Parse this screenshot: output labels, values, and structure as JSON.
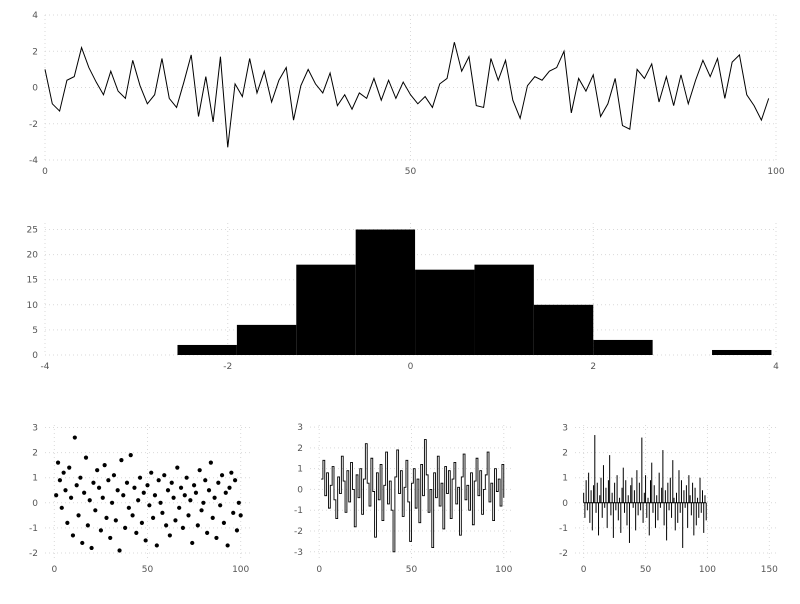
{
  "figure": {
    "background": "#ffffff",
    "grid_color": "#d9d9d9",
    "tick_label_color": "#555555",
    "series_color": "#000000"
  },
  "chart_data": [
    {
      "id": "noise-line",
      "type": "line",
      "title": "",
      "xlabel": "",
      "ylabel": "",
      "xlim": [
        0,
        100
      ],
      "ylim": [
        -4,
        4
      ],
      "xticks": [
        0,
        50,
        100
      ],
      "yticks": [
        -4,
        -2,
        0,
        2,
        4
      ],
      "grid": true,
      "x": [
        0,
        1,
        2,
        3,
        4,
        5,
        6,
        7,
        8,
        9,
        10,
        11,
        12,
        13,
        14,
        15,
        16,
        17,
        18,
        19,
        20,
        21,
        22,
        23,
        24,
        25,
        26,
        27,
        28,
        29,
        30,
        31,
        32,
        33,
        34,
        35,
        36,
        37,
        38,
        39,
        40,
        41,
        42,
        43,
        44,
        45,
        46,
        47,
        48,
        49,
        50,
        51,
        52,
        53,
        54,
        55,
        56,
        57,
        58,
        59,
        60,
        61,
        62,
        63,
        64,
        65,
        66,
        67,
        68,
        69,
        70,
        71,
        72,
        73,
        74,
        75,
        76,
        77,
        78,
        79,
        80,
        81,
        82,
        83,
        84,
        85,
        86,
        87,
        88,
        89,
        90,
        91,
        92,
        93,
        94,
        95,
        96,
        97,
        98,
        99
      ],
      "y": [
        1.0,
        -0.9,
        -1.3,
        0.4,
        0.6,
        2.2,
        1.1,
        0.3,
        -0.4,
        0.9,
        -0.2,
        -0.6,
        1.5,
        0.1,
        -0.9,
        -0.4,
        1.6,
        -0.6,
        -1.1,
        0.3,
        1.8,
        -1.6,
        0.6,
        -1.9,
        1.7,
        -3.3,
        0.2,
        -0.5,
        1.6,
        -0.3,
        0.9,
        -0.8,
        0.4,
        1.1,
        -1.8,
        0.1,
        1.0,
        0.2,
        -0.3,
        0.8,
        -1.0,
        -0.4,
        -1.2,
        -0.3,
        -0.6,
        0.5,
        -0.7,
        0.4,
        -0.6,
        0.3,
        -0.4,
        -0.9,
        -0.5,
        -1.1,
        0.2,
        0.5,
        2.5,
        0.9,
        1.7,
        -1.0,
        -1.1,
        1.6,
        0.4,
        1.5,
        -0.7,
        -1.7,
        0.1,
        0.6,
        0.4,
        0.9,
        1.1,
        2.0,
        -1.4,
        0.5,
        -0.2,
        0.7,
        -1.6,
        -0.9,
        0.5,
        -2.1,
        -2.3,
        1.0,
        0.5,
        1.3,
        -0.8,
        0.6,
        -1.0,
        0.7,
        -0.9,
        0.4,
        1.5,
        0.6,
        1.6,
        -0.6,
        1.4,
        1.8,
        -0.4,
        -1.0,
        -1.8,
        -0.6
      ]
    },
    {
      "id": "histogram",
      "type": "bar",
      "title": "",
      "xlabel": "",
      "ylabel": "",
      "xlim": [
        -4,
        4
      ],
      "ylim": [
        0,
        26.3
      ],
      "xticks": [
        -4,
        -2,
        0,
        2,
        4
      ],
      "yticks": [
        0,
        5,
        10,
        15,
        20,
        25
      ],
      "grid": true,
      "bin_edges": [
        -2.55,
        -1.9,
        -1.25,
        -0.6,
        0.05,
        0.7,
        1.35,
        2.0,
        2.65,
        3.3,
        3.95
      ],
      "counts": [
        2,
        6,
        18,
        25,
        17,
        18,
        10,
        3,
        0,
        1
      ]
    },
    {
      "id": "scatter",
      "type": "scatter",
      "title": "",
      "xlabel": "",
      "ylabel": "",
      "xlim": [
        -5,
        105
      ],
      "ylim": [
        -2.2,
        3.1
      ],
      "xticks": [
        0,
        50,
        100
      ],
      "yticks": [
        -2,
        -1,
        0,
        1,
        2,
        3
      ],
      "grid": true,
      "x": [
        1,
        2,
        3,
        4,
        5,
        6,
        7,
        8,
        9,
        10,
        11,
        12,
        13,
        14,
        15,
        16,
        17,
        18,
        19,
        20,
        21,
        22,
        23,
        24,
        25,
        26,
        27,
        28,
        29,
        30,
        31,
        32,
        33,
        34,
        35,
        36,
        37,
        38,
        39,
        40,
        41,
        42,
        43,
        44,
        45,
        46,
        47,
        48,
        49,
        50,
        51,
        52,
        53,
        54,
        55,
        56,
        57,
        58,
        59,
        60,
        61,
        62,
        63,
        64,
        65,
        66,
        67,
        68,
        69,
        70,
        71,
        72,
        73,
        74,
        75,
        76,
        77,
        78,
        79,
        80,
        81,
        82,
        83,
        84,
        85,
        86,
        87,
        88,
        89,
        90,
        91,
        92,
        93,
        94,
        95,
        96,
        97,
        98,
        99,
        100
      ],
      "y": [
        0.3,
        1.6,
        0.9,
        -0.2,
        1.2,
        0.5,
        -0.8,
        1.4,
        0.2,
        -1.3,
        2.6,
        0.7,
        -0.5,
        1.0,
        -1.6,
        0.4,
        1.8,
        -0.9,
        0.1,
        -1.8,
        0.8,
        -0.3,
        1.3,
        0.6,
        -1.1,
        0.2,
        1.5,
        -0.6,
        0.9,
        -1.4,
        0.0,
        1.1,
        -0.7,
        0.5,
        -1.9,
        1.7,
        0.3,
        -1.0,
        0.8,
        -0.2,
        1.9,
        -0.5,
        0.6,
        -1.2,
        0.1,
        1.0,
        -0.8,
        0.4,
        -1.5,
        0.7,
        -0.1,
        1.2,
        -0.6,
        0.3,
        -1.7,
        0.9,
        0.0,
        -0.4,
        1.1,
        -0.9,
        0.5,
        -1.3,
        0.8,
        0.2,
        -0.7,
        1.4,
        -0.2,
        0.6,
        -1.0,
        0.3,
        1.0,
        -0.5,
        0.1,
        -1.6,
        0.7,
        0.4,
        -0.9,
        1.3,
        -0.3,
        0.0,
        0.9,
        -1.2,
        0.5,
        1.6,
        -0.6,
        0.2,
        -1.4,
        0.8,
        -0.1,
        1.1,
        -0.8,
        0.4,
        -1.7,
        0.6,
        1.2,
        -0.4,
        0.9,
        -1.1,
        0.0,
        -0.5
      ]
    },
    {
      "id": "step",
      "type": "step",
      "title": "",
      "xlabel": "",
      "ylabel": "",
      "xlim": [
        -5,
        105
      ],
      "ylim": [
        -3.3,
        3.1
      ],
      "xticks": [
        0,
        50,
        100
      ],
      "yticks": [
        -3,
        -2,
        -1,
        0,
        1,
        2,
        3
      ],
      "grid": true,
      "x": [
        1,
        2,
        3,
        4,
        5,
        6,
        7,
        8,
        9,
        10,
        11,
        12,
        13,
        14,
        15,
        16,
        17,
        18,
        19,
        20,
        21,
        22,
        23,
        24,
        25,
        26,
        27,
        28,
        29,
        30,
        31,
        32,
        33,
        34,
        35,
        36,
        37,
        38,
        39,
        40,
        41,
        42,
        43,
        44,
        45,
        46,
        47,
        48,
        49,
        50,
        51,
        52,
        53,
        54,
        55,
        56,
        57,
        58,
        59,
        60,
        61,
        62,
        63,
        64,
        65,
        66,
        67,
        68,
        69,
        70,
        71,
        72,
        73,
        74,
        75,
        76,
        77,
        78,
        79,
        80,
        81,
        82,
        83,
        84,
        85,
        86,
        87,
        88,
        89,
        90,
        91,
        92,
        93,
        94,
        95,
        96,
        97,
        98,
        99,
        100
      ],
      "y": [
        0.5,
        1.4,
        -0.3,
        0.8,
        -0.9,
        0.2,
        1.1,
        -0.5,
        -1.4,
        0.6,
        -0.2,
        1.6,
        0.4,
        -1.1,
        0.9,
        -0.6,
        1.3,
        0.0,
        -1.8,
        0.7,
        -0.4,
        1.0,
        -1.2,
        0.5,
        2.2,
        0.3,
        -0.8,
        1.5,
        -0.1,
        -2.3,
        0.8,
        -0.5,
        1.2,
        -1.5,
        0.2,
        1.8,
        -0.7,
        0.4,
        -1.0,
        -3.0,
        0.6,
        1.9,
        -0.2,
        0.9,
        -1.3,
        0.1,
        1.4,
        -0.6,
        -2.5,
        0.3,
        1.0,
        -0.9,
        0.5,
        -1.6,
        1.2,
        -0.3,
        2.4,
        0.7,
        -1.1,
        0.0,
        -2.8,
        0.8,
        -0.4,
        1.6,
        -0.8,
        0.3,
        -1.9,
        1.1,
        -0.2,
        0.9,
        -1.4,
        0.5,
        1.3,
        -0.7,
        0.1,
        -2.2,
        0.6,
        1.7,
        -0.5,
        0.2,
        -1.0,
        0.8,
        -1.7,
        0.4,
        1.5,
        -0.3,
        0.9,
        -1.2,
        0.0,
        0.7,
        1.8,
        -0.6,
        0.3,
        -1.5,
        1.0,
        -0.1,
        0.5,
        -0.8,
        1.2,
        -0.4
      ]
    },
    {
      "id": "stem",
      "type": "stem",
      "title": "",
      "xlabel": "",
      "ylabel": "",
      "xlim": [
        -7,
        157
      ],
      "ylim": [
        -2.2,
        3.1
      ],
      "xticks": [
        0,
        50,
        100,
        150
      ],
      "yticks": [
        -2,
        -1,
        0,
        1,
        2,
        3
      ],
      "grid": true,
      "x": [
        0,
        1,
        2,
        3,
        4,
        5,
        6,
        7,
        8,
        9,
        10,
        11,
        12,
        13,
        14,
        15,
        16,
        17,
        18,
        19,
        20,
        21,
        22,
        23,
        24,
        25,
        26,
        27,
        28,
        29,
        30,
        31,
        32,
        33,
        34,
        35,
        36,
        37,
        38,
        39,
        40,
        41,
        42,
        43,
        44,
        45,
        46,
        47,
        48,
        49,
        50,
        51,
        52,
        53,
        54,
        55,
        56,
        57,
        58,
        59,
        60,
        61,
        62,
        63,
        64,
        65,
        66,
        67,
        68,
        69,
        70,
        71,
        72,
        73,
        74,
        75,
        76,
        77,
        78,
        79,
        80,
        81,
        82,
        83,
        84,
        85,
        86,
        87,
        88,
        89,
        90,
        91,
        92,
        93,
        94,
        95,
        96,
        97,
        98,
        99
      ],
      "y": [
        0.4,
        -0.6,
        0.9,
        -0.3,
        1.2,
        -0.8,
        0.5,
        -1.1,
        0.7,
        2.7,
        -0.4,
        0.8,
        -1.3,
        0.3,
        1.0,
        -0.6,
        1.5,
        -0.2,
        0.6,
        -1.0,
        0.9,
        1.9,
        -0.5,
        0.4,
        -1.4,
        0.8,
        -0.3,
        1.1,
        -0.7,
        0.2,
        -1.2,
        0.6,
        1.4,
        -0.4,
        0.9,
        -0.9,
        0.3,
        -1.6,
        0.7,
        1.0,
        -0.2,
        0.5,
        -1.1,
        1.3,
        -0.5,
        0.8,
        -0.3,
        2.6,
        -0.8,
        0.4,
        1.1,
        -0.6,
        0.2,
        -1.3,
        0.9,
        1.6,
        -0.4,
        0.7,
        -1.0,
        0.3,
        -0.7,
        1.2,
        -0.2,
        0.6,
        2.1,
        -0.9,
        0.5,
        -1.5,
        0.8,
        -0.3,
        1.0,
        -0.6,
        1.7,
        0.2,
        -1.1,
        0.4,
        -0.8,
        1.3,
        -0.4,
        0.9,
        -1.8,
        0.5,
        -0.2,
        0.7,
        -1.0,
        1.1,
        0.3,
        -0.5,
        0.8,
        -1.3,
        0.6,
        -0.9,
        0.2,
        -0.6,
        1.0,
        -0.4,
        0.5,
        -1.2,
        0.3,
        -0.7
      ]
    }
  ]
}
